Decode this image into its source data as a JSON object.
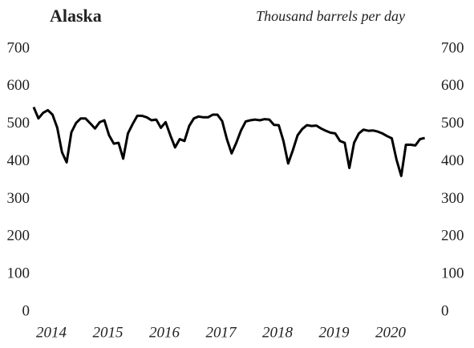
{
  "chart_data": {
    "type": "line",
    "title": "Alaska",
    "subtitle": "Thousand barrels per day",
    "x": [
      2014,
      2014.083,
      2014.167,
      2014.25,
      2014.333,
      2014.417,
      2014.5,
      2014.583,
      2014.667,
      2014.75,
      2014.833,
      2014.917,
      2015,
      2015.083,
      2015.167,
      2015.25,
      2015.333,
      2015.417,
      2015.5,
      2015.583,
      2015.667,
      2015.75,
      2015.833,
      2015.917,
      2016,
      2016.083,
      2016.167,
      2016.25,
      2016.333,
      2016.417,
      2016.5,
      2016.583,
      2016.667,
      2016.75,
      2016.833,
      2016.917,
      2017,
      2017.083,
      2017.167,
      2017.25,
      2017.333,
      2017.417,
      2017.5,
      2017.583,
      2017.667,
      2017.75,
      2017.833,
      2017.917,
      2018,
      2018.083,
      2018.167,
      2018.25,
      2018.333,
      2018.417,
      2018.5,
      2018.583,
      2018.667,
      2018.75,
      2018.833,
      2018.917,
      2019,
      2019.083,
      2019.167,
      2019.25,
      2019.333,
      2019.417,
      2019.5,
      2019.583,
      2019.667,
      2019.75,
      2019.833,
      2019.917,
      2020,
      2020.083,
      2020.167,
      2020.25,
      2020.333,
      2020.417,
      2020.5,
      2020.583,
      2020.667,
      2020.75,
      2020.833,
      2020.917
    ],
    "series": [
      {
        "color": "#000000",
        "values": [
          545,
          515,
          530,
          537,
          525,
          490,
          425,
          398,
          478,
          503,
          515,
          515,
          502,
          488,
          505,
          510,
          470,
          448,
          450,
          408,
          475,
          500,
          522,
          522,
          518,
          510,
          512,
          490,
          505,
          470,
          438,
          460,
          455,
          495,
          515,
          520,
          518,
          518,
          525,
          525,
          508,
          460,
          422,
          450,
          483,
          507,
          510,
          512,
          510,
          513,
          512,
          498,
          497,
          455,
          395,
          430,
          470,
          487,
          497,
          495,
          496,
          488,
          482,
          477,
          475,
          455,
          450,
          383,
          450,
          475,
          485,
          482,
          483,
          480,
          475,
          468,
          462,
          405,
          362,
          445,
          445,
          443,
          460,
          463
        ]
      }
    ],
    "xlim": [
      2014,
      2021
    ],
    "xticks": [
      2014,
      2015,
      2016,
      2017,
      2018,
      2019,
      2020
    ],
    "ylim": [
      0,
      700
    ],
    "yticks": [
      0,
      100,
      200,
      300,
      400,
      500,
      600,
      700
    ],
    "grid": false
  }
}
